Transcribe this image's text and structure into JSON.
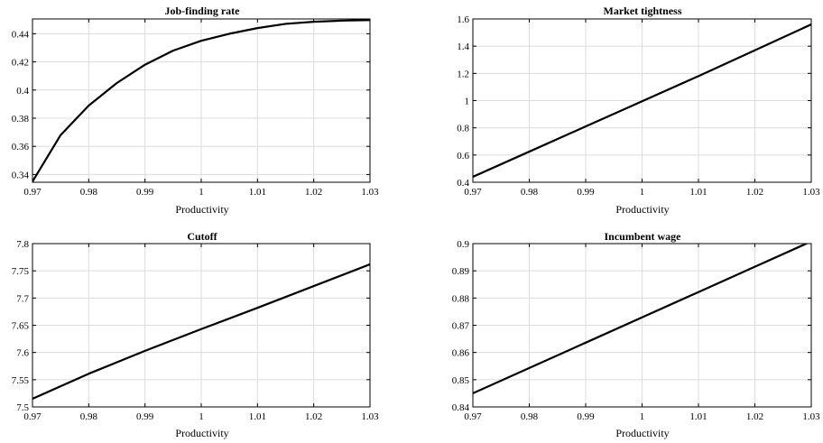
{
  "chart_data": [
    {
      "type": "line",
      "title": "Job-finding rate",
      "xlabel": "Productivity",
      "ylabel": "",
      "xlim": [
        0.97,
        1.03
      ],
      "ylim": [
        0.3345,
        0.4505
      ],
      "grid": true,
      "xticks": [
        "0.97",
        "0.98",
        "0.99",
        "1",
        "1.01",
        "1.02",
        "1.03"
      ],
      "yticks": [
        "0.34",
        "0.36",
        "0.38",
        "0.4",
        "0.42",
        "0.44"
      ],
      "series": [
        {
          "x": [
            0.97,
            0.975,
            0.98,
            0.985,
            0.99,
            0.995,
            1.0,
            1.005,
            1.01,
            1.015,
            1.02,
            1.025,
            1.03
          ],
          "y": [
            0.335,
            0.368,
            0.389,
            0.405,
            0.418,
            0.428,
            0.435,
            0.44,
            0.444,
            0.447,
            0.4485,
            0.4493,
            0.4497
          ]
        }
      ]
    },
    {
      "type": "line",
      "title": "Market tightness",
      "xlabel": "Productivity",
      "ylabel": "",
      "xlim": [
        0.97,
        1.03
      ],
      "ylim": [
        0.4,
        1.6
      ],
      "grid": true,
      "xticks": [
        "0.97",
        "0.98",
        "0.99",
        "1",
        "1.01",
        "1.02",
        "1.03"
      ],
      "yticks": [
        "0.4",
        "0.6",
        "0.8",
        "1",
        "1.2",
        "1.4",
        "1.6"
      ],
      "series": [
        {
          "x": [
            0.97,
            0.98,
            0.99,
            1.0,
            1.01,
            1.02,
            1.03
          ],
          "y": [
            0.44,
            0.625,
            0.81,
            0.995,
            1.18,
            1.37,
            1.56
          ]
        }
      ]
    },
    {
      "type": "line",
      "title": "Cutoff",
      "xlabel": "Productivity",
      "ylabel": "",
      "xlim": [
        0.97,
        1.03
      ],
      "ylim": [
        7.5,
        7.8
      ],
      "grid": true,
      "xticks": [
        "0.97",
        "0.98",
        "0.99",
        "1",
        "1.01",
        "1.02",
        "1.03"
      ],
      "yticks": [
        "7.5",
        "7.55",
        "7.6",
        "7.65",
        "7.7",
        "7.75",
        "7.8"
      ],
      "series": [
        {
          "x": [
            0.97,
            0.98,
            0.99,
            1.0,
            1.01,
            1.02,
            1.03
          ],
          "y": [
            7.515,
            7.561,
            7.603,
            7.643,
            7.682,
            7.722,
            7.762
          ]
        }
      ]
    },
    {
      "type": "line",
      "title": "Incumbent wage",
      "xlabel": "Productivity",
      "ylabel": "",
      "xlim": [
        0.97,
        1.03
      ],
      "ylim": [
        0.84,
        0.9
      ],
      "grid": true,
      "xticks": [
        "0.97",
        "0.98",
        "0.99",
        "1",
        "1.01",
        "1.02",
        "1.03"
      ],
      "yticks": [
        "0.84",
        "0.85",
        "0.86",
        "0.87",
        "0.88",
        "0.89",
        "0.9"
      ],
      "series": [
        {
          "x": [
            0.97,
            0.98,
            0.99,
            1.0,
            1.01,
            1.02,
            1.03
          ],
          "y": [
            0.845,
            0.8543,
            0.8636,
            0.8729,
            0.8822,
            0.8915,
            0.9008
          ]
        }
      ]
    }
  ]
}
